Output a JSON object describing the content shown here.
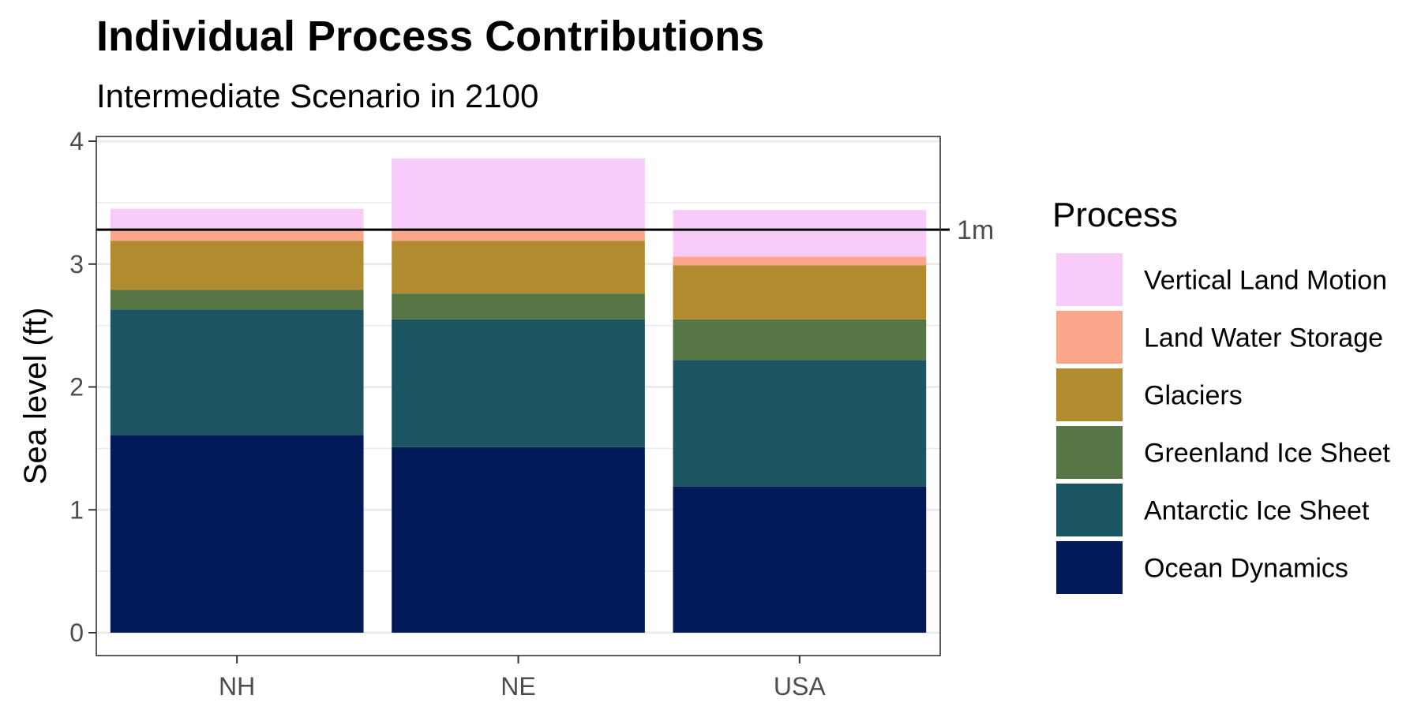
{
  "chart_data": {
    "type": "bar",
    "stacked": true,
    "title": "Individual Process Contributions",
    "subtitle": "Intermediate Scenario in 2100",
    "xlabel": "",
    "ylabel": "Sea level (ft)",
    "ylim": [
      0,
      4
    ],
    "yticks": [
      "0",
      "1",
      "2",
      "3",
      "4"
    ],
    "grid": true,
    "categories": [
      "NH",
      "NE",
      "USA"
    ],
    "reference_line": {
      "value": 3.28,
      "label": "1m"
    },
    "legend": {
      "title": "Process",
      "position": "right"
    },
    "series": [
      {
        "name": "Ocean Dynamics",
        "color": "#021a57",
        "values": [
          1.61,
          1.51,
          1.19
        ]
      },
      {
        "name": "Antarctic Ice Sheet",
        "color": "#1b5561",
        "values": [
          1.02,
          1.04,
          1.03
        ]
      },
      {
        "name": "Greenland Ice Sheet",
        "color": "#567646",
        "values": [
          0.16,
          0.21,
          0.33
        ]
      },
      {
        "name": "Glaciers",
        "color": "#b08b2f",
        "values": [
          0.4,
          0.43,
          0.44
        ]
      },
      {
        "name": "Land Water Storage",
        "color": "#f9a68a",
        "values": [
          0.1,
          0.1,
          0.07
        ]
      },
      {
        "name": "Vertical Land Motion",
        "color": "#f7ccf8",
        "values": [
          0.16,
          0.57,
          0.38
        ]
      }
    ]
  }
}
